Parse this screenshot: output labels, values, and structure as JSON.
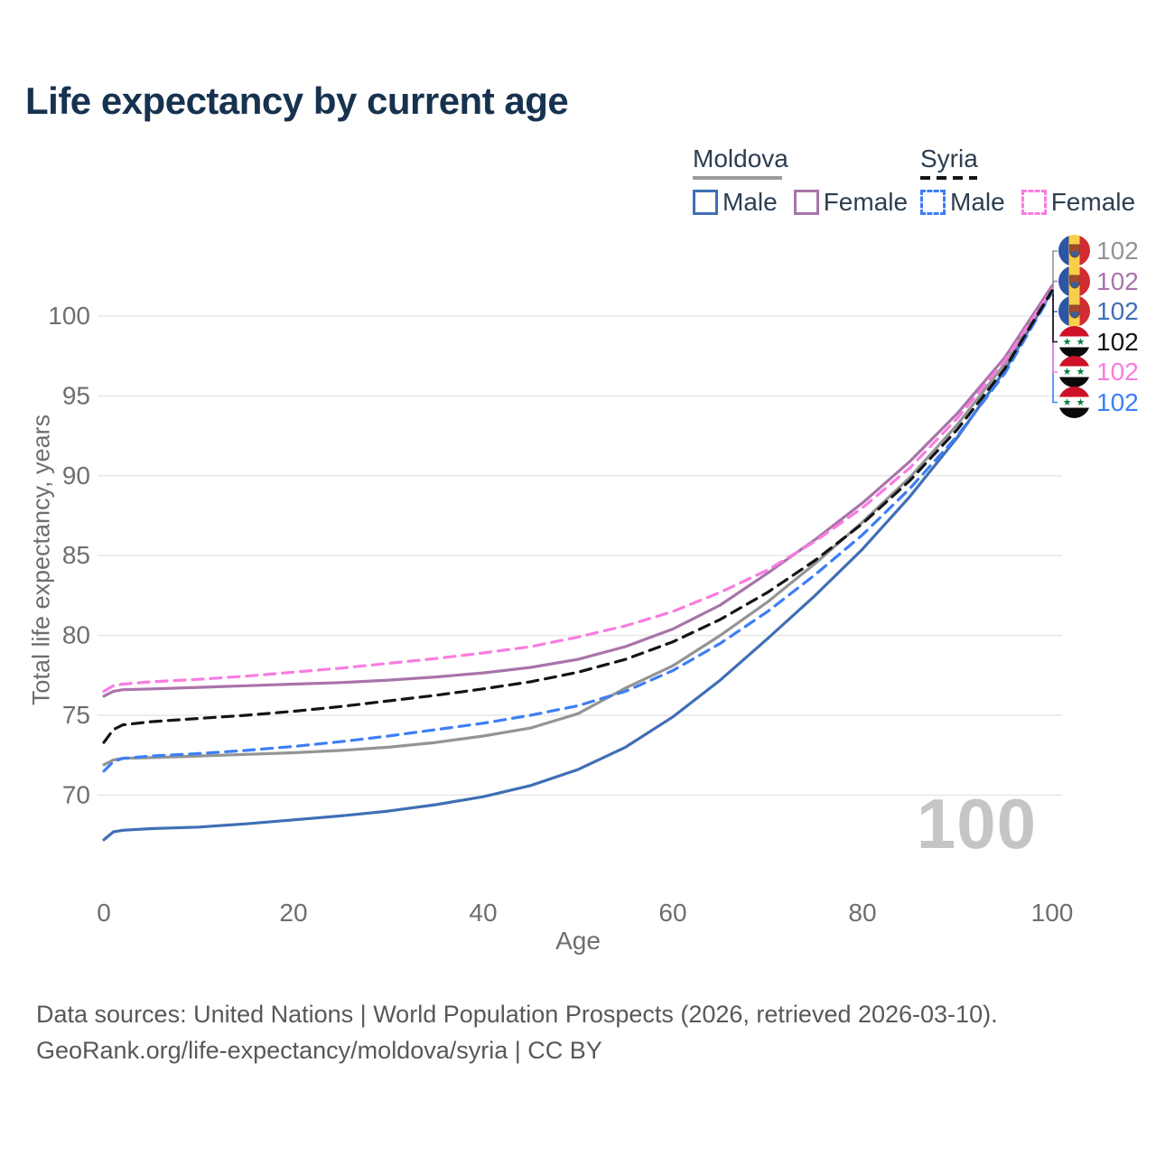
{
  "title": "Life expectancy by current age",
  "watermark": "100",
  "icons": {
    "moldova_flag": "moldova-flag-icon",
    "syria_flag": "syria-flag-icon",
    "syria_stars": "★ ★"
  },
  "legend": {
    "groups": [
      {
        "country": "Moldova",
        "line_style": "solid",
        "underline_color": "#9a9a9a",
        "items": [
          {
            "label": "Male",
            "color": "#3f6fb5"
          },
          {
            "label": "Female",
            "color": "#a974a9"
          }
        ]
      },
      {
        "country": "Syria",
        "line_style": "dashed",
        "underline_color": "#141414",
        "items": [
          {
            "label": "Male",
            "color": "#3d7ef5"
          },
          {
            "label": "Female",
            "color": "#f97ce0"
          }
        ]
      }
    ]
  },
  "colors": {
    "title_text": "#17324f",
    "axis_text": "#6e6e6e",
    "gridline": "#e7e7e7",
    "watermark": "#c5c5c5",
    "footer_text": "#58585a"
  },
  "chart_data": {
    "type": "line",
    "title": "Life expectancy by current age",
    "xlabel": "Age",
    "ylabel": "Total life expectancy, years",
    "x_ticks": [
      0,
      20,
      40,
      60,
      80,
      100
    ],
    "y_ticks": [
      70,
      75,
      80,
      85,
      90,
      95,
      100
    ],
    "xlim": [
      0,
      100
    ],
    "ylim": [
      66,
      103
    ],
    "grid": "horizontal",
    "legend_position": "top-right",
    "ages": [
      0,
      1,
      2,
      5,
      10,
      15,
      20,
      25,
      30,
      35,
      40,
      45,
      50,
      55,
      60,
      65,
      70,
      75,
      80,
      85,
      90,
      95,
      100
    ],
    "series": [
      {
        "name": "Moldova Male",
        "country": "Moldova",
        "sex": "Male",
        "color": "#3f6fb5",
        "dash": "solid",
        "end_label": "102",
        "label_row": 2,
        "values": [
          67.2,
          67.7,
          67.8,
          67.9,
          68.0,
          68.2,
          68.45,
          68.7,
          69.0,
          69.4,
          69.9,
          70.6,
          71.6,
          73.0,
          74.9,
          77.2,
          79.8,
          82.5,
          85.4,
          88.7,
          92.4,
          96.6,
          101.6
        ]
      },
      {
        "name": "Moldova Female",
        "country": "Moldova",
        "sex": "Female",
        "color": "#a974a9",
        "dash": "solid",
        "end_label": "102",
        "label_row": 1,
        "values": [
          76.2,
          76.5,
          76.6,
          76.65,
          76.75,
          76.85,
          76.95,
          77.05,
          77.2,
          77.4,
          77.65,
          78.0,
          78.5,
          79.3,
          80.4,
          81.9,
          83.9,
          86.0,
          88.3,
          90.9,
          93.9,
          97.4,
          101.9
        ]
      },
      {
        "name": "Moldova (total)",
        "country": "Moldova",
        "sex": "Both",
        "color": "#949494",
        "dash": "solid",
        "end_label": "102",
        "label_row": 0,
        "values": [
          71.9,
          72.2,
          72.3,
          72.35,
          72.45,
          72.55,
          72.65,
          72.8,
          73.0,
          73.3,
          73.7,
          74.2,
          75.1,
          76.7,
          78.1,
          80.0,
          82.1,
          84.5,
          87.1,
          89.9,
          93.2,
          97.0,
          101.7
        ]
      },
      {
        "name": "Syria Male",
        "country": "Syria",
        "sex": "Male",
        "color": "#3d7ef5",
        "dash": "dashed",
        "end_label": "102",
        "label_row": 5,
        "values": [
          71.5,
          72.1,
          72.3,
          72.45,
          72.6,
          72.8,
          73.05,
          73.35,
          73.7,
          74.1,
          74.5,
          75.0,
          75.6,
          76.5,
          77.8,
          79.5,
          81.5,
          83.8,
          86.3,
          89.2,
          92.5,
          96.4,
          101.5
        ]
      },
      {
        "name": "Syria Female",
        "country": "Syria",
        "sex": "Female",
        "color": "#f97ce0",
        "dash": "dashed",
        "end_label": "102",
        "label_row": 4,
        "values": [
          76.5,
          76.85,
          76.95,
          77.1,
          77.25,
          77.45,
          77.7,
          77.95,
          78.25,
          78.55,
          78.9,
          79.3,
          79.9,
          80.6,
          81.5,
          82.7,
          84.1,
          85.9,
          88.0,
          90.5,
          93.6,
          97.2,
          101.7
        ]
      },
      {
        "name": "Syria (total)",
        "country": "Syria",
        "sex": "Both",
        "color": "#141414",
        "dash": "dashed",
        "end_label": "102",
        "label_row": 3,
        "values": [
          73.3,
          74.1,
          74.4,
          74.6,
          74.8,
          75.0,
          75.25,
          75.55,
          75.9,
          76.25,
          76.65,
          77.1,
          77.7,
          78.5,
          79.6,
          81.0,
          82.7,
          84.7,
          87.0,
          89.7,
          92.9,
          96.7,
          101.6
        ]
      }
    ]
  },
  "footer": {
    "line1": "Data sources: United Nations | World Population Prospects (2026, retrieved 2026-03-10).",
    "line2": "GeoRank.org/life-expectancy/moldova/syria | CC BY"
  }
}
